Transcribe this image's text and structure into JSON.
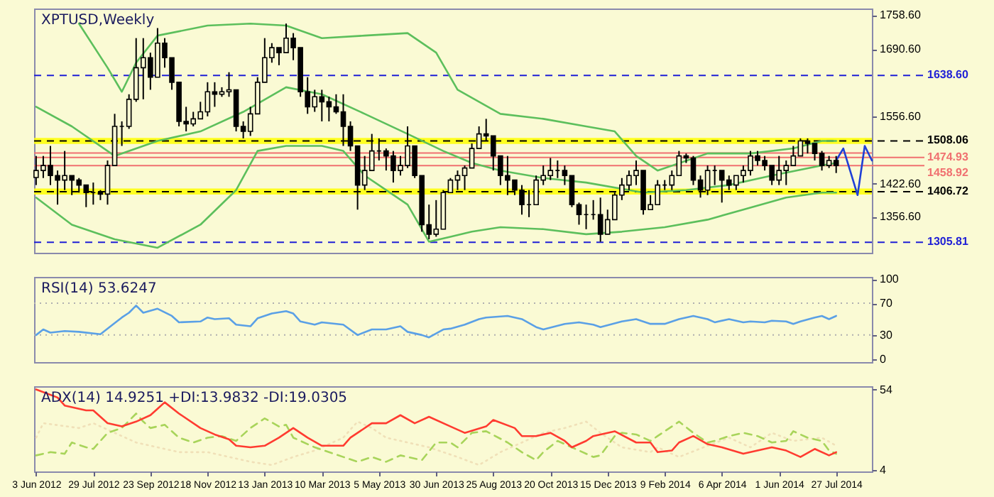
{
  "chart_data": [
    {
      "type": "candlestick",
      "title": "XPTUSD,Weekly",
      "color": "#000000",
      "tick_labels": "y",
      "xlim": [
        "2012-06-01",
        "2014-08-31"
      ],
      "ylim": [
        1285,
        1772
      ],
      "yticks": [
        {
          "value": 1758.6,
          "label": "1758.60"
        },
        {
          "value": 1690.6,
          "label": "1690.60"
        },
        {
          "value": 1556.6,
          "label": "1556.60"
        },
        {
          "value": 1422.6,
          "label": "1422.60"
        },
        {
          "value": 1356.6,
          "label": "1356.60"
        }
      ],
      "x": [
        "2012-06-03",
        "2012-06-10",
        "2012-06-17",
        "2012-06-24",
        "2012-07-01",
        "2012-07-08",
        "2012-07-15",
        "2012-07-22",
        "2012-07-29",
        "2012-08-05",
        "2012-08-12",
        "2012-08-19",
        "2012-08-26",
        "2012-09-02",
        "2012-09-09",
        "2012-09-16",
        "2012-09-23",
        "2012-09-30",
        "2012-10-07",
        "2012-10-14",
        "2012-10-21",
        "2012-10-28",
        "2012-11-04",
        "2012-11-11",
        "2012-11-18",
        "2012-11-25",
        "2012-12-02",
        "2012-12-09",
        "2012-12-16",
        "2012-12-23",
        "2012-12-30",
        "2013-01-06",
        "2013-01-13",
        "2013-01-20",
        "2013-01-27",
        "2013-02-03",
        "2013-02-10",
        "2013-02-17",
        "2013-02-24",
        "2013-03-03",
        "2013-03-10",
        "2013-03-17",
        "2013-03-24",
        "2013-03-31",
        "2013-04-07",
        "2013-04-14",
        "2013-04-21",
        "2013-04-28",
        "2013-05-05",
        "2013-05-12",
        "2013-05-19",
        "2013-05-26",
        "2013-06-02",
        "2013-06-09",
        "2013-06-16",
        "2013-06-23",
        "2013-06-30",
        "2013-07-07",
        "2013-07-14",
        "2013-07-21",
        "2013-07-28",
        "2013-08-04",
        "2013-08-11",
        "2013-08-18",
        "2013-08-25",
        "2013-09-01",
        "2013-09-08",
        "2013-09-15",
        "2013-09-22",
        "2013-09-29",
        "2013-10-06",
        "2013-10-13",
        "2013-10-20",
        "2013-10-27",
        "2013-11-03",
        "2013-11-10",
        "2013-11-17",
        "2013-11-24",
        "2013-12-01",
        "2013-12-08",
        "2013-12-15",
        "2013-12-22",
        "2013-12-29",
        "2014-01-05",
        "2014-01-12",
        "2014-01-19",
        "2014-01-26",
        "2014-02-02",
        "2014-02-09",
        "2014-02-16",
        "2014-02-23",
        "2014-03-02",
        "2014-03-09",
        "2014-03-16",
        "2014-03-23",
        "2014-03-30",
        "2014-04-06",
        "2014-04-13",
        "2014-04-20",
        "2014-04-27",
        "2014-05-04",
        "2014-05-11",
        "2014-05-18",
        "2014-05-25",
        "2014-06-01",
        "2014-06-08",
        "2014-06-15",
        "2014-06-22",
        "2014-06-29",
        "2014-07-06",
        "2014-07-13",
        "2014-07-20",
        "2014-07-27"
      ],
      "ohlc": [
        [
          1435,
          1478,
          1420,
          1449
        ],
        [
          1449,
          1478,
          1434,
          1459
        ],
        [
          1459,
          1498,
          1420,
          1439
        ],
        [
          1439,
          1449,
          1381,
          1430
        ],
        [
          1430,
          1488,
          1410,
          1439
        ],
        [
          1439,
          1439,
          1400,
          1430
        ],
        [
          1430,
          1434,
          1405,
          1420
        ],
        [
          1420,
          1420,
          1376,
          1405
        ],
        [
          1405,
          1425,
          1381,
          1405
        ],
        [
          1405,
          1410,
          1390,
          1402
        ],
        [
          1402,
          1469,
          1381,
          1459
        ],
        [
          1459,
          1562,
          1459,
          1537
        ],
        [
          1537,
          1547,
          1498,
          1537
        ],
        [
          1537,
          1601,
          1532,
          1591
        ],
        [
          1591,
          1713,
          1586,
          1654
        ],
        [
          1654,
          1713,
          1591,
          1674
        ],
        [
          1674,
          1684,
          1610,
          1635
        ],
        [
          1635,
          1733,
          1635,
          1703
        ],
        [
          1703,
          1713,
          1654,
          1674
        ],
        [
          1674,
          1674,
          1610,
          1625
        ],
        [
          1625,
          1625,
          1537,
          1547
        ],
        [
          1547,
          1576,
          1527,
          1542
        ],
        [
          1542,
          1566,
          1537,
          1552
        ],
        [
          1552,
          1586,
          1552,
          1566
        ],
        [
          1566,
          1625,
          1557,
          1606
        ],
        [
          1606,
          1625,
          1576,
          1601
        ],
        [
          1601,
          1615,
          1596,
          1606
        ],
        [
          1606,
          1645,
          1596,
          1610
        ],
        [
          1610,
          1610,
          1527,
          1537
        ],
        [
          1537,
          1547,
          1513,
          1527
        ],
        [
          1527,
          1576,
          1518,
          1562
        ],
        [
          1562,
          1635,
          1562,
          1625
        ],
        [
          1625,
          1713,
          1625,
          1674
        ],
        [
          1674,
          1703,
          1664,
          1694
        ],
        [
          1694,
          1694,
          1659,
          1684
        ],
        [
          1684,
          1742,
          1684,
          1713
        ],
        [
          1713,
          1723,
          1669,
          1694
        ],
        [
          1694,
          1694,
          1596,
          1606
        ],
        [
          1606,
          1635,
          1562,
          1576
        ],
        [
          1576,
          1610,
          1566,
          1596
        ],
        [
          1596,
          1610,
          1547,
          1586
        ],
        [
          1586,
          1596,
          1547,
          1576
        ],
        [
          1576,
          1601,
          1562,
          1566
        ],
        [
          1566,
          1601,
          1498,
          1537
        ],
        [
          1537,
          1547,
          1488,
          1498
        ],
        [
          1498,
          1498,
          1371,
          1420
        ],
        [
          1420,
          1478,
          1410,
          1449
        ],
        [
          1449,
          1522,
          1449,
          1488
        ],
        [
          1488,
          1513,
          1469,
          1488
        ],
        [
          1488,
          1493,
          1449,
          1478
        ],
        [
          1478,
          1488,
          1425,
          1449
        ],
        [
          1449,
          1478,
          1439,
          1459
        ],
        [
          1459,
          1537,
          1454,
          1498
        ],
        [
          1498,
          1498,
          1434,
          1439
        ],
        [
          1439,
          1439,
          1327,
          1341
        ],
        [
          1341,
          1381,
          1312,
          1322
        ],
        [
          1322,
          1390,
          1317,
          1332
        ],
        [
          1332,
          1410,
          1332,
          1405
        ],
        [
          1405,
          1434,
          1405,
          1430
        ],
        [
          1430,
          1449,
          1410,
          1439
        ],
        [
          1439,
          1459,
          1410,
          1454
        ],
        [
          1454,
          1503,
          1454,
          1493
        ],
        [
          1493,
          1537,
          1493,
          1522
        ],
        [
          1522,
          1552,
          1508,
          1518
        ],
        [
          1518,
          1518,
          1449,
          1478
        ],
        [
          1478,
          1478,
          1420,
          1439
        ],
        [
          1439,
          1478,
          1400,
          1430
        ],
        [
          1430,
          1430,
          1400,
          1410
        ],
        [
          1410,
          1420,
          1361,
          1381
        ],
        [
          1381,
          1410,
          1356,
          1381
        ],
        [
          1381,
          1439,
          1381,
          1430
        ],
        [
          1430,
          1459,
          1420,
          1439
        ],
        [
          1439,
          1474,
          1430,
          1449
        ],
        [
          1449,
          1469,
          1434,
          1449
        ],
        [
          1449,
          1459,
          1420,
          1439
        ],
        [
          1439,
          1439,
          1376,
          1381
        ],
        [
          1381,
          1385,
          1341,
          1361
        ],
        [
          1361,
          1381,
          1332,
          1361
        ],
        [
          1361,
          1390,
          1351,
          1361
        ],
        [
          1361,
          1395,
          1307,
          1322
        ],
        [
          1322,
          1371,
          1322,
          1351
        ],
        [
          1351,
          1405,
          1351,
          1400
        ],
        [
          1400,
          1434,
          1390,
          1420
        ],
        [
          1420,
          1449,
          1410,
          1439
        ],
        [
          1439,
          1469,
          1420,
          1449
        ],
        [
          1449,
          1449,
          1361,
          1371
        ],
        [
          1371,
          1400,
          1371,
          1381
        ],
        [
          1381,
          1430,
          1381,
          1420
        ],
        [
          1420,
          1430,
          1410,
          1420
        ],
        [
          1420,
          1449,
          1410,
          1439
        ],
        [
          1439,
          1488,
          1439,
          1478
        ],
        [
          1478,
          1483,
          1464,
          1474
        ],
        [
          1474,
          1478,
          1420,
          1430
        ],
        [
          1430,
          1439,
          1395,
          1410
        ],
        [
          1410,
          1459,
          1400,
          1449
        ],
        [
          1449,
          1459,
          1420,
          1449
        ],
        [
          1449,
          1449,
          1385,
          1430
        ],
        [
          1430,
          1439,
          1410,
          1420
        ],
        [
          1420,
          1439,
          1410,
          1439
        ],
        [
          1439,
          1459,
          1425,
          1449
        ],
        [
          1449,
          1488,
          1439,
          1478
        ],
        [
          1478,
          1488,
          1459,
          1469
        ],
        [
          1469,
          1478,
          1449,
          1459
        ],
        [
          1459,
          1459,
          1420,
          1430
        ],
        [
          1430,
          1478,
          1420,
          1449
        ],
        [
          1449,
          1469,
          1420,
          1459
        ],
        [
          1459,
          1498,
          1459,
          1478
        ],
        [
          1478,
          1513,
          1478,
          1508
        ],
        [
          1508,
          1513,
          1483,
          1503
        ],
        [
          1503,
          1503,
          1469,
          1483
        ],
        [
          1483,
          1488,
          1449,
          1459
        ],
        [
          1459,
          1478,
          1454,
          1469
        ],
        [
          1469,
          1478,
          1444,
          1459
        ]
      ],
      "series": [
        {
          "type": "line",
          "color": "#5cbf5c",
          "x": [
            "2012-07-15",
            "2012-08-12",
            "2012-08-26",
            "2012-09-09",
            "2012-09-30",
            "2012-11-18",
            "2012-12-30",
            "2013-02-03",
            "2013-03-10",
            "2013-04-21",
            "2013-06-02",
            "2013-06-30",
            "2013-07-21",
            "2013-09-01",
            "2013-10-13",
            "2013-11-24",
            "2013-12-22",
            "2014-01-12",
            "2014-02-02",
            "2014-03-23",
            "2014-05-04",
            "2014-06-15",
            "2014-07-13",
            "2014-07-27"
          ],
          "values": [
            1742,
            1654,
            1606,
            1664,
            1718,
            1738,
            1742,
            1738,
            1713,
            1718,
            1723,
            1684,
            1610,
            1562,
            1552,
            1537,
            1527,
            1478,
            1449,
            1483,
            1483,
            1493,
            1508,
            1508
          ]
        },
        {
          "type": "line",
          "color": "#5cbf5c",
          "x": [
            "2012-06-03",
            "2012-07-08",
            "2012-08-19",
            "2012-09-30",
            "2012-11-11",
            "2012-12-23",
            "2013-02-03",
            "2013-03-10",
            "2013-04-21",
            "2013-06-02",
            "2013-07-07",
            "2013-08-04",
            "2013-09-01",
            "2013-10-13",
            "2013-11-24",
            "2014-01-19",
            "2014-03-02",
            "2014-04-13",
            "2014-05-25",
            "2014-07-13",
            "2014-07-27"
          ],
          "values": [
            1576,
            1537,
            1478,
            1508,
            1527,
            1566,
            1615,
            1601,
            1562,
            1522,
            1488,
            1464,
            1449,
            1434,
            1425,
            1405,
            1410,
            1420,
            1439,
            1459,
            1464
          ]
        },
        {
          "type": "line",
          "color": "#5cbf5c",
          "x": [
            "2012-06-03",
            "2012-07-08",
            "2012-08-19",
            "2012-09-30",
            "2012-11-11",
            "2012-12-16",
            "2013-01-06",
            "2013-02-03",
            "2013-03-10",
            "2013-03-31",
            "2013-04-21",
            "2013-06-02",
            "2013-06-23",
            "2013-07-14",
            "2013-08-04",
            "2013-09-01",
            "2013-10-13",
            "2013-11-24",
            "2013-12-29",
            "2014-02-09",
            "2014-03-23",
            "2014-04-27",
            "2014-06-08",
            "2014-07-13",
            "2014-07-27"
          ],
          "values": [
            1395,
            1341,
            1312,
            1295,
            1341,
            1410,
            1488,
            1498,
            1498,
            1488,
            1439,
            1381,
            1307,
            1317,
            1327,
            1336,
            1332,
            1322,
            1327,
            1336,
            1351,
            1371,
            1395,
            1405,
            1405
          ]
        },
        {
          "type": "line",
          "color": "#1f3fd6",
          "x": [
            "2014-07-27",
            "2014-08-03",
            "2014-08-17",
            "2014-08-24",
            "2014-08-31"
          ],
          "values": [
            1469,
            1493,
            1400,
            1498,
            1469
          ]
        }
      ],
      "bands": [
        {
          "axis": "y",
          "from": 1502,
          "to": 1514,
          "color": "#ffff00"
        },
        {
          "axis": "y",
          "from": 1401,
          "to": 1413,
          "color": "#ffff00"
        }
      ],
      "ref_lines": [
        {
          "axis": "y",
          "value": 1638.6,
          "label": "1638.60",
          "color": "#1f1fd6",
          "line_style": "dashed"
        },
        {
          "axis": "y",
          "value": 1508.06,
          "label": "1508.06",
          "color": "#000000",
          "line_style": "dashed"
        },
        {
          "axis": "y",
          "value": 1484,
          "color": "#f07070"
        },
        {
          "axis": "y",
          "value": 1474.93,
          "label": "1474.93",
          "color": "#f07070"
        },
        {
          "axis": "y",
          "value": 1458.92,
          "label": "1458.92",
          "color": "#f07070"
        },
        {
          "axis": "y",
          "value": 1406.72,
          "label": "1406.72",
          "color": "#000000",
          "line_style": "dashed"
        },
        {
          "axis": "y",
          "value": 1305.81,
          "label": "1305.81",
          "color": "#1f1fd6",
          "line_style": "dashed"
        }
      ]
    },
    {
      "type": "line",
      "title": "RSI(14) 53.6247",
      "tick_labels": "y",
      "xlim": [
        "2012-06-01",
        "2014-08-31"
      ],
      "ylim": [
        -4,
        103
      ],
      "yticks": [
        0,
        30,
        70,
        100
      ],
      "ref_lines": [
        {
          "axis": "y",
          "value": 30,
          "color": "#b0b0b0",
          "line_style": "dotted"
        },
        {
          "axis": "y",
          "value": 70,
          "color": "#b0b0b0",
          "line_style": "dotted"
        }
      ],
      "series": [
        {
          "color": "#5aa0e6",
          "x": [
            "2012-06-03",
            "2012-06-10",
            "2012-06-17",
            "2012-07-01",
            "2012-07-15",
            "2012-08-05",
            "2012-08-19",
            "2012-08-26",
            "2012-09-02",
            "2012-09-09",
            "2012-09-16",
            "2012-09-30",
            "2012-10-14",
            "2012-10-21",
            "2012-11-11",
            "2012-11-18",
            "2012-11-25",
            "2012-12-09",
            "2012-12-16",
            "2012-12-30",
            "2013-01-06",
            "2013-01-20",
            "2013-02-03",
            "2013-02-10",
            "2013-02-17",
            "2013-03-03",
            "2013-03-10",
            "2013-03-31",
            "2013-04-14",
            "2013-04-28",
            "2013-05-12",
            "2013-05-26",
            "2013-06-02",
            "2013-06-16",
            "2013-06-23",
            "2013-07-07",
            "2013-07-14",
            "2013-07-28",
            "2013-08-11",
            "2013-08-18",
            "2013-09-08",
            "2013-09-22",
            "2013-10-06",
            "2013-10-13",
            "2013-11-03",
            "2013-11-17",
            "2013-12-01",
            "2013-12-08",
            "2013-12-29",
            "2014-01-12",
            "2014-01-26",
            "2014-02-09",
            "2014-02-23",
            "2014-03-09",
            "2014-03-23",
            "2014-03-30",
            "2014-04-13",
            "2014-04-27",
            "2014-05-04",
            "2014-05-18",
            "2014-05-25",
            "2014-06-08",
            "2014-06-15",
            "2014-06-22",
            "2014-07-06",
            "2014-07-13",
            "2014-07-20",
            "2014-07-27"
          ],
          "values": [
            30,
            37,
            33,
            35,
            34,
            31,
            45,
            52,
            58,
            67,
            58,
            63,
            54,
            46,
            47,
            52,
            50,
            51,
            43,
            41,
            51,
            57,
            60,
            57,
            47,
            43,
            46,
            43,
            30,
            37,
            37,
            41,
            34,
            30,
            27,
            37,
            38,
            43,
            50,
            52,
            54,
            50,
            40,
            37,
            44,
            46,
            43,
            40,
            47,
            50,
            44,
            44,
            50,
            54,
            50,
            46,
            50,
            46,
            47,
            46,
            48,
            47,
            44,
            47,
            52,
            54,
            50,
            54
          ]
        }
      ]
    },
    {
      "type": "line",
      "title": "ADX(14) 14.9251 +DI:13.9832 -DI:19.0305",
      "xlim": [
        "2012-06-01",
        "2014-08-31"
      ],
      "ylim": [
        3,
        56
      ],
      "yticks": [
        4,
        54
      ],
      "xticks": [
        {
          "value": "2012-06-03",
          "label": "3 Jun 2012"
        },
        {
          "value": "2012-07-29",
          "label": "29 Jul 2012"
        },
        {
          "value": "2012-09-23",
          "label": "23 Sep 2012"
        },
        {
          "value": "2012-11-18",
          "label": "18 Nov 2012"
        },
        {
          "value": "2013-01-13",
          "label": "13 Jan 2013"
        },
        {
          "value": "2013-03-10",
          "label": "10 Mar 2013"
        },
        {
          "value": "2013-05-05",
          "label": "5 May 2013"
        },
        {
          "value": "2013-06-30",
          "label": "30 Jun 2013"
        },
        {
          "value": "2013-08-25",
          "label": "25 Aug 2013"
        },
        {
          "value": "2013-10-20",
          "label": "20 Oct 2013"
        },
        {
          "value": "2013-12-15",
          "label": "15 Dec 2013"
        },
        {
          "value": "2014-02-09",
          "label": "9 Feb 2014"
        },
        {
          "value": "2014-04-06",
          "label": "6 Apr 2014"
        },
        {
          "value": "2014-06-01",
          "label": "1 Jun 2014"
        },
        {
          "value": "2014-07-27",
          "label": "27 Jul 2014"
        }
      ],
      "series": [
        {
          "color": "#f0e0b8",
          "line_style": "dotted",
          "x": [
            "2012-06-03",
            "2012-06-10",
            "2012-07-15",
            "2012-07-29",
            "2012-08-19",
            "2012-09-09",
            "2012-09-30",
            "2012-10-21",
            "2012-11-18",
            "2012-12-09",
            "2012-12-30",
            "2013-01-20",
            "2013-02-10",
            "2013-03-03",
            "2013-03-31",
            "2013-04-14",
            "2013-04-28",
            "2013-05-12",
            "2013-06-02",
            "2013-06-23",
            "2013-07-21",
            "2013-08-11",
            "2013-09-01",
            "2013-09-22",
            "2013-10-13",
            "2013-11-03",
            "2013-11-24",
            "2013-12-08",
            "2013-12-29",
            "2014-01-26",
            "2014-02-02",
            "2014-02-23",
            "2014-03-23",
            "2014-04-13",
            "2014-05-04",
            "2014-05-25",
            "2014-06-15",
            "2014-07-13",
            "2014-07-27"
          ],
          "values": [
            24,
            33,
            30,
            33,
            27,
            21,
            18,
            15,
            15,
            12,
            9,
            7,
            12,
            16,
            24,
            34,
            30,
            24,
            21,
            18,
            12,
            7,
            15,
            21,
            27,
            30,
            34,
            27,
            18,
            15,
            18,
            12,
            19,
            24,
            18,
            27,
            22,
            24,
            19
          ]
        },
        {
          "color": "#a8d45a",
          "line_style": "dashed",
          "x": [
            "2012-06-03",
            "2012-06-17",
            "2012-07-01",
            "2012-07-08",
            "2012-07-22",
            "2012-07-29",
            "2012-08-12",
            "2012-08-26",
            "2012-09-09",
            "2012-09-16",
            "2012-09-23",
            "2012-10-07",
            "2012-10-21",
            "2012-11-04",
            "2012-11-18",
            "2012-12-02",
            "2012-12-16",
            "2012-12-30",
            "2013-01-13",
            "2013-01-27",
            "2013-02-03",
            "2013-02-10",
            "2013-03-03",
            "2013-03-31",
            "2013-04-14",
            "2013-04-28",
            "2013-05-12",
            "2013-05-26",
            "2013-06-16",
            "2013-06-30",
            "2013-07-14",
            "2013-07-21",
            "2013-08-04",
            "2013-08-18",
            "2013-09-08",
            "2013-09-22",
            "2013-10-06",
            "2013-10-13",
            "2013-10-27",
            "2013-11-10",
            "2013-12-01",
            "2013-12-08",
            "2013-12-22",
            "2013-12-29",
            "2014-01-12",
            "2014-01-26",
            "2014-02-02",
            "2014-02-23",
            "2014-03-09",
            "2014-03-23",
            "2014-03-30",
            "2014-04-13",
            "2014-04-27",
            "2014-05-11",
            "2014-05-25",
            "2014-06-08",
            "2014-06-15",
            "2014-06-29",
            "2014-07-13",
            "2014-07-20",
            "2014-07-27"
          ],
          "values": [
            13,
            15,
            14,
            21,
            18,
            17,
            27,
            30,
            39,
            34,
            30,
            32,
            24,
            21,
            24,
            25,
            22,
            30,
            36,
            31,
            32,
            24,
            18,
            12,
            9,
            12,
            9,
            13,
            10,
            21,
            21,
            18,
            27,
            28,
            21,
            15,
            10,
            15,
            22,
            18,
            12,
            13,
            25,
            27,
            26,
            22,
            25,
            34,
            27,
            21,
            22,
            25,
            27,
            25,
            21,
            22,
            28,
            24,
            22,
            16,
            14
          ]
        },
        {
          "color": "#ff3b30",
          "x": [
            "2012-06-03",
            "2012-06-24",
            "2012-07-01",
            "2012-07-22",
            "2012-07-29",
            "2012-08-12",
            "2012-08-26",
            "2012-09-09",
            "2012-09-23",
            "2012-09-30",
            "2012-10-07",
            "2012-10-21",
            "2012-11-11",
            "2012-11-25",
            "2012-12-09",
            "2012-12-16",
            "2012-12-30",
            "2013-01-13",
            "2013-01-27",
            "2013-02-10",
            "2013-02-24",
            "2013-03-10",
            "2013-03-31",
            "2013-04-07",
            "2013-04-28",
            "2013-05-12",
            "2013-05-26",
            "2013-06-09",
            "2013-06-23",
            "2013-07-14",
            "2013-07-28",
            "2013-08-18",
            "2013-08-25",
            "2013-09-15",
            "2013-09-22",
            "2013-10-06",
            "2013-10-20",
            "2013-11-03",
            "2013-11-10",
            "2013-11-24",
            "2013-12-01",
            "2013-12-22",
            "2014-01-12",
            "2014-01-26",
            "2014-02-02",
            "2014-02-16",
            "2014-02-23",
            "2014-03-09",
            "2014-03-23",
            "2014-04-06",
            "2014-04-27",
            "2014-05-18",
            "2014-05-25",
            "2014-06-08",
            "2014-06-22",
            "2014-07-06",
            "2014-07-20",
            "2014-07-27"
          ],
          "values": [
            54,
            49,
            44,
            41,
            41,
            33,
            31,
            34,
            38,
            42,
            46,
            39,
            30,
            26,
            23,
            19,
            18,
            19,
            24,
            30,
            24,
            19,
            19,
            24,
            33,
            33,
            38,
            33,
            37,
            31,
            27,
            31,
            35,
            30,
            25,
            25,
            27,
            22,
            18,
            22,
            25,
            28,
            21,
            21,
            15,
            16,
            21,
            25,
            20,
            18,
            14,
            17,
            18,
            16,
            12,
            17,
            13,
            15
          ]
        }
      ]
    }
  ]
}
